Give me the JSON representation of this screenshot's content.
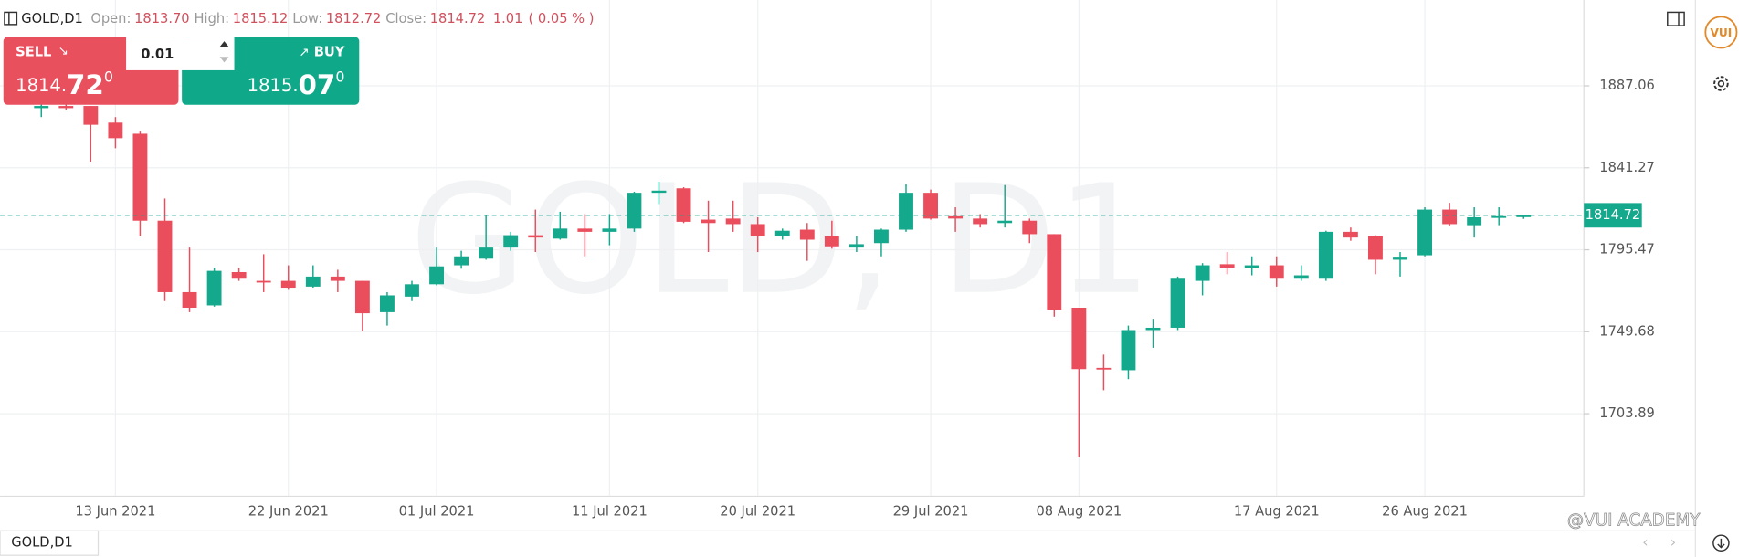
{
  "header": {
    "symbol": "GOLD,D1",
    "items": [
      {
        "label": "Open:",
        "value": "1813.70"
      },
      {
        "label": "High:",
        "value": "1815.12"
      },
      {
        "label": "Low:",
        "value": "1812.72"
      },
      {
        "label": "Close:",
        "value": "1814.72"
      }
    ],
    "change": "1.01",
    "change_pct": "( 0.05 % )"
  },
  "trade_panel": {
    "sell": {
      "label": "SELL",
      "price_main": "1814.",
      "price_big": "72",
      "price_sup": "0"
    },
    "lot": "0.01",
    "buy": {
      "label": "BUY",
      "price_main": "1815.",
      "price_big": "07",
      "price_sup": "0"
    }
  },
  "watermark": "GOLD, D1",
  "bottom_tab": "GOLD,D1",
  "branding": {
    "logo": "VUI",
    "credit": "@VUI ACADEMY"
  },
  "chart_data": {
    "type": "candlestick",
    "categories": [
      null,
      null,
      null,
      "13 Jun 2021",
      null,
      null,
      null,
      null,
      null,
      null,
      "22 Jun 2021",
      null,
      null,
      null,
      null,
      null,
      "01 Jul 2021",
      null,
      null,
      null,
      null,
      null,
      null,
      "11 Jul 2021",
      null,
      null,
      null,
      null,
      null,
      "20 Jul 2021",
      null,
      null,
      null,
      null,
      null,
      null,
      "29 Jul 2021",
      null,
      null,
      null,
      null,
      null,
      "08 Aug 2021",
      null,
      null,
      null,
      null,
      null,
      null,
      null,
      "17 Aug 2021",
      null,
      null,
      null,
      null,
      null,
      "26 Aug 2021",
      null,
      null,
      null,
      null
    ],
    "open": [
      1874.6,
      1875.8,
      1875.8,
      1866.5,
      1860.3,
      1811.7,
      1771.8,
      1764.4,
      1783.0,
      1778.1,
      1778.1,
      1774.9,
      1780.5,
      1778.1,
      1760.6,
      1769.3,
      1776.2,
      1786.8,
      1790.5,
      1796.7,
      1803.6,
      1801.7,
      1807.3,
      1805.5,
      1807.3,
      1827.3,
      1829.8,
      1812.3,
      1812.9,
      1809.8,
      1803.0,
      1806.7,
      1803.0,
      1796.7,
      1799.2,
      1806.7,
      1827.3,
      1814.2,
      1812.9,
      1810.4,
      1811.7,
      1804.2,
      1763.1,
      1729.5,
      1728.2,
      1750.6,
      1751.9,
      1778.1,
      1787.4,
      1785.5,
      1786.8,
      1779.3,
      1779.3,
      1805.5,
      1803.0,
      1789.9,
      1792.4,
      1817.9,
      1809.2,
      1813.6,
      1813.7
    ],
    "high": [
      1882.1,
      1877.0,
      1875.8,
      1869.6,
      1861.5,
      1824.1,
      1796.7,
      1785.5,
      1785.5,
      1793.0,
      1786.8,
      1786.8,
      1784.3,
      1778.1,
      1771.8,
      1778.1,
      1796.7,
      1794.9,
      1814.8,
      1805.5,
      1817.9,
      1816.7,
      1815.4,
      1815.4,
      1827.9,
      1833.5,
      1830.4,
      1822.9,
      1822.9,
      1813.6,
      1807.3,
      1810.4,
      1811.7,
      1803.0,
      1807.3,
      1832.2,
      1829.1,
      1819.2,
      1815.4,
      1831.6,
      1812.9,
      1804.2,
      1763.1,
      1736.9,
      1753.1,
      1756.9,
      1780.5,
      1788.0,
      1794.2,
      1791.8,
      1791.8,
      1786.8,
      1806.1,
      1807.9,
      1803.6,
      1794.2,
      1819.2,
      1821.7,
      1819.2,
      1819.2,
      1815.12
    ],
    "low": [
      1869.6,
      1873.4,
      1844.7,
      1852.2,
      1803.0,
      1766.8,
      1760.6,
      1763.7,
      1778.1,
      1771.8,
      1773.1,
      1774.3,
      1771.8,
      1750.0,
      1753.1,
      1766.8,
      1775.6,
      1784.9,
      1789.9,
      1794.9,
      1794.2,
      1801.1,
      1791.8,
      1798.0,
      1805.5,
      1821.0,
      1810.4,
      1794.2,
      1805.5,
      1794.2,
      1801.1,
      1789.3,
      1796.1,
      1794.2,
      1791.8,
      1805.5,
      1812.3,
      1805.5,
      1807.9,
      1807.9,
      1799.2,
      1758.1,
      1679.6,
      1717.0,
      1723.2,
      1740.7,
      1750.6,
      1770.0,
      1781.8,
      1781.2,
      1774.9,
      1778.1,
      1778.1,
      1800.5,
      1781.8,
      1780.5,
      1791.8,
      1808.6,
      1802.3,
      1809.2,
      1812.72
    ],
    "close": [
      1875.8,
      1874.6,
      1865.3,
      1857.8,
      1811.7,
      1771.8,
      1763.1,
      1783.7,
      1779.3,
      1777.5,
      1774.3,
      1780.5,
      1778.1,
      1760.0,
      1770.0,
      1776.2,
      1786.2,
      1791.8,
      1796.7,
      1803.6,
      1802.3,
      1807.3,
      1805.5,
      1807.3,
      1827.3,
      1828.5,
      1811.1,
      1810.4,
      1809.8,
      1803.0,
      1806.1,
      1801.1,
      1797.4,
      1798.6,
      1806.7,
      1827.3,
      1812.9,
      1812.9,
      1809.8,
      1811.7,
      1804.2,
      1761.9,
      1728.8,
      1728.8,
      1750.6,
      1751.9,
      1779.3,
      1786.8,
      1785.5,
      1786.8,
      1779.3,
      1781.2,
      1805.5,
      1802.3,
      1789.9,
      1791.1,
      1817.9,
      1809.8,
      1813.6,
      1814.2,
      1814.72
    ],
    "up_color": "#14a88c",
    "down_color": "#ea4d5c",
    "ylim": [
      1657.8,
      1935.0
    ],
    "yticks": [
      1887.06,
      1841.27,
      1795.47,
      1749.68,
      1703.89
    ],
    "grid": true
  }
}
